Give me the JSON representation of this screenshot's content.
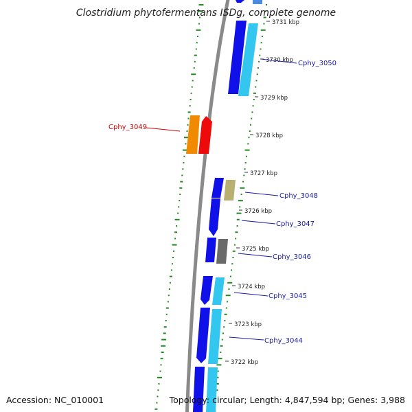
{
  "title": "Clostridium phytofermentans ISDg, complete genome",
  "accession": "Accession: NC_010001",
  "summary": "Topology: circular; Length: 4,847,594 bp; Genes: 3,988",
  "scale_ticks": [
    "3731 kbp",
    "3730 kbp",
    "3729 kbp",
    "3728 kbp",
    "3727 kbp",
    "3726 kbp",
    "3725 kbp",
    "3724 kbp",
    "3723 kbp",
    "3722 kbp"
  ],
  "genes": [
    {
      "name": "Cphy_3050",
      "color": "#1a1aa6"
    },
    {
      "name": "Cphy_3049",
      "color": "#cc0000"
    },
    {
      "name": "Cphy_3048",
      "color": "#1a1aa6"
    },
    {
      "name": "Cphy_3047",
      "color": "#1a1aa6"
    },
    {
      "name": "Cphy_3046",
      "color": "#1a1aa6"
    },
    {
      "name": "Cphy_3045",
      "color": "#1a1aa6"
    },
    {
      "name": "Cphy_3044",
      "color": "#1a1aa6"
    }
  ],
  "colors": {
    "backbone": "#8a8a8a",
    "cds_forward": "#1010e8",
    "cds_rna": "#33c7f0",
    "orange_feature": "#f08a00",
    "red_feature": "#ee0a0a",
    "khaki_feature": "#b8b070",
    "grey_feature": "#6a6a6a",
    "gc_track": "#1e8a1e"
  }
}
